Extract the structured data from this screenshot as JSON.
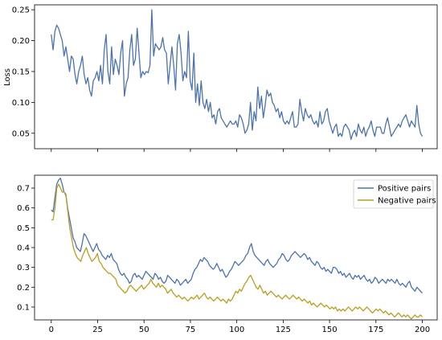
{
  "chart_data": [
    {
      "type": "line",
      "title": "",
      "xlabel": "",
      "ylabel": "Loss",
      "xlim": [
        -9,
        208
      ],
      "ylim": [
        0.025,
        0.258
      ],
      "xticks": [
        0,
        25,
        50,
        75,
        100,
        125,
        150,
        175,
        200
      ],
      "show_xtick_labels": false,
      "yticks": [
        0.05,
        0.1,
        0.15,
        0.2,
        0.25
      ],
      "yticklabels": [
        "0.05",
        "0.10",
        "0.15",
        "0.20",
        "0.25"
      ],
      "grid": false,
      "color": "#4c72b0",
      "x_start": 0,
      "x_end": 200,
      "values": [
        0.21,
        0.185,
        0.215,
        0.225,
        0.22,
        0.21,
        0.2,
        0.175,
        0.19,
        0.17,
        0.15,
        0.175,
        0.17,
        0.145,
        0.13,
        0.15,
        0.16,
        0.175,
        0.145,
        0.13,
        0.14,
        0.12,
        0.11,
        0.135,
        0.14,
        0.15,
        0.135,
        0.16,
        0.13,
        0.185,
        0.21,
        0.15,
        0.13,
        0.19,
        0.145,
        0.17,
        0.16,
        0.145,
        0.18,
        0.2,
        0.11,
        0.13,
        0.14,
        0.185,
        0.21,
        0.16,
        0.17,
        0.22,
        0.18,
        0.14,
        0.15,
        0.145,
        0.15,
        0.148,
        0.16,
        0.25,
        0.175,
        0.195,
        0.19,
        0.185,
        0.19,
        0.205,
        0.185,
        0.18,
        0.13,
        0.16,
        0.19,
        0.16,
        0.12,
        0.195,
        0.21,
        0.18,
        0.135,
        0.15,
        0.14,
        0.215,
        0.135,
        0.12,
        0.18,
        0.1,
        0.13,
        0.095,
        0.135,
        0.1,
        0.09,
        0.105,
        0.085,
        0.1,
        0.075,
        0.08,
        0.065,
        0.085,
        0.09,
        0.075,
        0.07,
        0.065,
        0.06,
        0.065,
        0.07,
        0.065,
        0.065,
        0.07,
        0.06,
        0.08,
        0.075,
        0.065,
        0.05,
        0.055,
        0.065,
        0.1,
        0.055,
        0.085,
        0.07,
        0.125,
        0.09,
        0.11,
        0.075,
        0.095,
        0.12,
        0.11,
        0.115,
        0.1,
        0.095,
        0.085,
        0.09,
        0.075,
        0.085,
        0.07,
        0.065,
        0.07,
        0.065,
        0.075,
        0.085,
        0.06,
        0.06,
        0.065,
        0.105,
        0.085,
        0.07,
        0.09,
        0.08,
        0.075,
        0.08,
        0.07,
        0.065,
        0.07,
        0.06,
        0.085,
        0.065,
        0.07,
        0.085,
        0.09,
        0.07,
        0.06,
        0.05,
        0.06,
        0.065,
        0.045,
        0.05,
        0.045,
        0.06,
        0.065,
        0.06,
        0.055,
        0.04,
        0.05,
        0.055,
        0.045,
        0.065,
        0.055,
        0.05,
        0.06,
        0.045,
        0.055,
        0.06,
        0.07,
        0.055,
        0.045,
        0.06,
        0.06,
        0.06,
        0.05,
        0.05,
        0.065,
        0.075,
        0.06,
        0.045,
        0.05,
        0.055,
        0.06,
        0.065,
        0.06,
        0.07,
        0.075,
        0.08,
        0.07,
        0.06,
        0.07,
        0.065,
        0.06,
        0.095,
        0.065,
        0.05,
        0.045
      ]
    },
    {
      "type": "line",
      "title": "",
      "xlabel": "",
      "ylabel": "",
      "xlim": [
        -9,
        208
      ],
      "ylim": [
        0.035,
        0.765
      ],
      "xticks": [
        0,
        25,
        50,
        75,
        100,
        125,
        150,
        175,
        200
      ],
      "xticklabels": [
        "0",
        "25",
        "50",
        "75",
        "100",
        "125",
        "150",
        "175",
        "200"
      ],
      "yticks": [
        0.1,
        0.2,
        0.3,
        0.4,
        0.5,
        0.6,
        0.7
      ],
      "yticklabels": [
        "0.1",
        "0.2",
        "0.3",
        "0.4",
        "0.5",
        "0.6",
        "0.7"
      ],
      "grid": false,
      "legend_position": "top-right",
      "x_start": 0,
      "x_end": 200,
      "series": [
        {
          "name": "Positive pairs",
          "color": "#4c72b0",
          "values": [
            0.59,
            0.58,
            0.65,
            0.72,
            0.74,
            0.75,
            0.72,
            0.68,
            0.67,
            0.6,
            0.55,
            0.5,
            0.45,
            0.43,
            0.4,
            0.39,
            0.38,
            0.42,
            0.47,
            0.46,
            0.44,
            0.42,
            0.4,
            0.38,
            0.4,
            0.42,
            0.39,
            0.38,
            0.36,
            0.35,
            0.34,
            0.36,
            0.35,
            0.37,
            0.34,
            0.33,
            0.32,
            0.29,
            0.27,
            0.26,
            0.27,
            0.25,
            0.24,
            0.22,
            0.23,
            0.26,
            0.27,
            0.25,
            0.26,
            0.25,
            0.24,
            0.26,
            0.28,
            0.27,
            0.26,
            0.25,
            0.24,
            0.27,
            0.26,
            0.24,
            0.25,
            0.23,
            0.22,
            0.23,
            0.26,
            0.25,
            0.24,
            0.23,
            0.22,
            0.24,
            0.23,
            0.21,
            0.22,
            0.23,
            0.24,
            0.22,
            0.23,
            0.24,
            0.27,
            0.29,
            0.3,
            0.32,
            0.34,
            0.33,
            0.35,
            0.34,
            0.33,
            0.31,
            0.3,
            0.29,
            0.3,
            0.32,
            0.3,
            0.28,
            0.29,
            0.27,
            0.25,
            0.26,
            0.28,
            0.29,
            0.31,
            0.33,
            0.32,
            0.31,
            0.32,
            0.33,
            0.34,
            0.36,
            0.37,
            0.4,
            0.42,
            0.38,
            0.36,
            0.35,
            0.34,
            0.33,
            0.32,
            0.31,
            0.33,
            0.34,
            0.32,
            0.31,
            0.3,
            0.31,
            0.32,
            0.34,
            0.35,
            0.37,
            0.36,
            0.34,
            0.33,
            0.34,
            0.36,
            0.37,
            0.38,
            0.37,
            0.36,
            0.35,
            0.36,
            0.37,
            0.36,
            0.34,
            0.35,
            0.33,
            0.32,
            0.31,
            0.33,
            0.32,
            0.3,
            0.29,
            0.3,
            0.28,
            0.29,
            0.28,
            0.27,
            0.3,
            0.3,
            0.29,
            0.27,
            0.28,
            0.26,
            0.27,
            0.25,
            0.26,
            0.27,
            0.25,
            0.24,
            0.26,
            0.25,
            0.26,
            0.24,
            0.25,
            0.26,
            0.24,
            0.23,
            0.24,
            0.22,
            0.23,
            0.25,
            0.24,
            0.22,
            0.23,
            0.24,
            0.23,
            0.22,
            0.24,
            0.23,
            0.24,
            0.23,
            0.22,
            0.24,
            0.22,
            0.21,
            0.22,
            0.21,
            0.2,
            0.22,
            0.23,
            0.2,
            0.19,
            0.18,
            0.2,
            0.19,
            0.18,
            0.17
          ]
        },
        {
          "name": "Negative pairs",
          "color": "#b8a020",
          "values": [
            0.54,
            0.54,
            0.6,
            0.7,
            0.72,
            0.7,
            0.68,
            0.68,
            0.66,
            0.58,
            0.5,
            0.45,
            0.4,
            0.37,
            0.35,
            0.34,
            0.33,
            0.36,
            0.38,
            0.4,
            0.37,
            0.35,
            0.33,
            0.34,
            0.35,
            0.37,
            0.33,
            0.32,
            0.3,
            0.29,
            0.28,
            0.27,
            0.27,
            0.26,
            0.25,
            0.24,
            0.21,
            0.2,
            0.19,
            0.18,
            0.17,
            0.18,
            0.2,
            0.21,
            0.2,
            0.19,
            0.18,
            0.19,
            0.2,
            0.21,
            0.19,
            0.2,
            0.21,
            0.22,
            0.24,
            0.22,
            0.21,
            0.2,
            0.22,
            0.2,
            0.21,
            0.2,
            0.19,
            0.17,
            0.18,
            0.19,
            0.17,
            0.16,
            0.15,
            0.16,
            0.15,
            0.14,
            0.15,
            0.14,
            0.13,
            0.14,
            0.15,
            0.14,
            0.15,
            0.16,
            0.14,
            0.15,
            0.16,
            0.17,
            0.15,
            0.14,
            0.15,
            0.14,
            0.13,
            0.14,
            0.15,
            0.14,
            0.13,
            0.14,
            0.13,
            0.12,
            0.14,
            0.13,
            0.14,
            0.16,
            0.18,
            0.17,
            0.19,
            0.18,
            0.2,
            0.22,
            0.23,
            0.25,
            0.26,
            0.24,
            0.22,
            0.2,
            0.19,
            0.21,
            0.19,
            0.17,
            0.18,
            0.16,
            0.17,
            0.18,
            0.17,
            0.16,
            0.15,
            0.16,
            0.15,
            0.14,
            0.15,
            0.16,
            0.15,
            0.14,
            0.15,
            0.16,
            0.15,
            0.14,
            0.15,
            0.14,
            0.13,
            0.14,
            0.13,
            0.12,
            0.13,
            0.11,
            0.12,
            0.11,
            0.1,
            0.11,
            0.12,
            0.11,
            0.1,
            0.11,
            0.1,
            0.09,
            0.1,
            0.09,
            0.1,
            0.08,
            0.09,
            0.08,
            0.09,
            0.08,
            0.09,
            0.1,
            0.09,
            0.08,
            0.09,
            0.1,
            0.09,
            0.1,
            0.09,
            0.08,
            0.09,
            0.1,
            0.09,
            0.08,
            0.07,
            0.08,
            0.09,
            0.08,
            0.09,
            0.08,
            0.07,
            0.08,
            0.07,
            0.06,
            0.07,
            0.06,
            0.05,
            0.06,
            0.07,
            0.06,
            0.05,
            0.06,
            0.05,
            0.06,
            0.05,
            0.04,
            0.05,
            0.06,
            0.05,
            0.05,
            0.06,
            0.05
          ]
        }
      ]
    }
  ]
}
